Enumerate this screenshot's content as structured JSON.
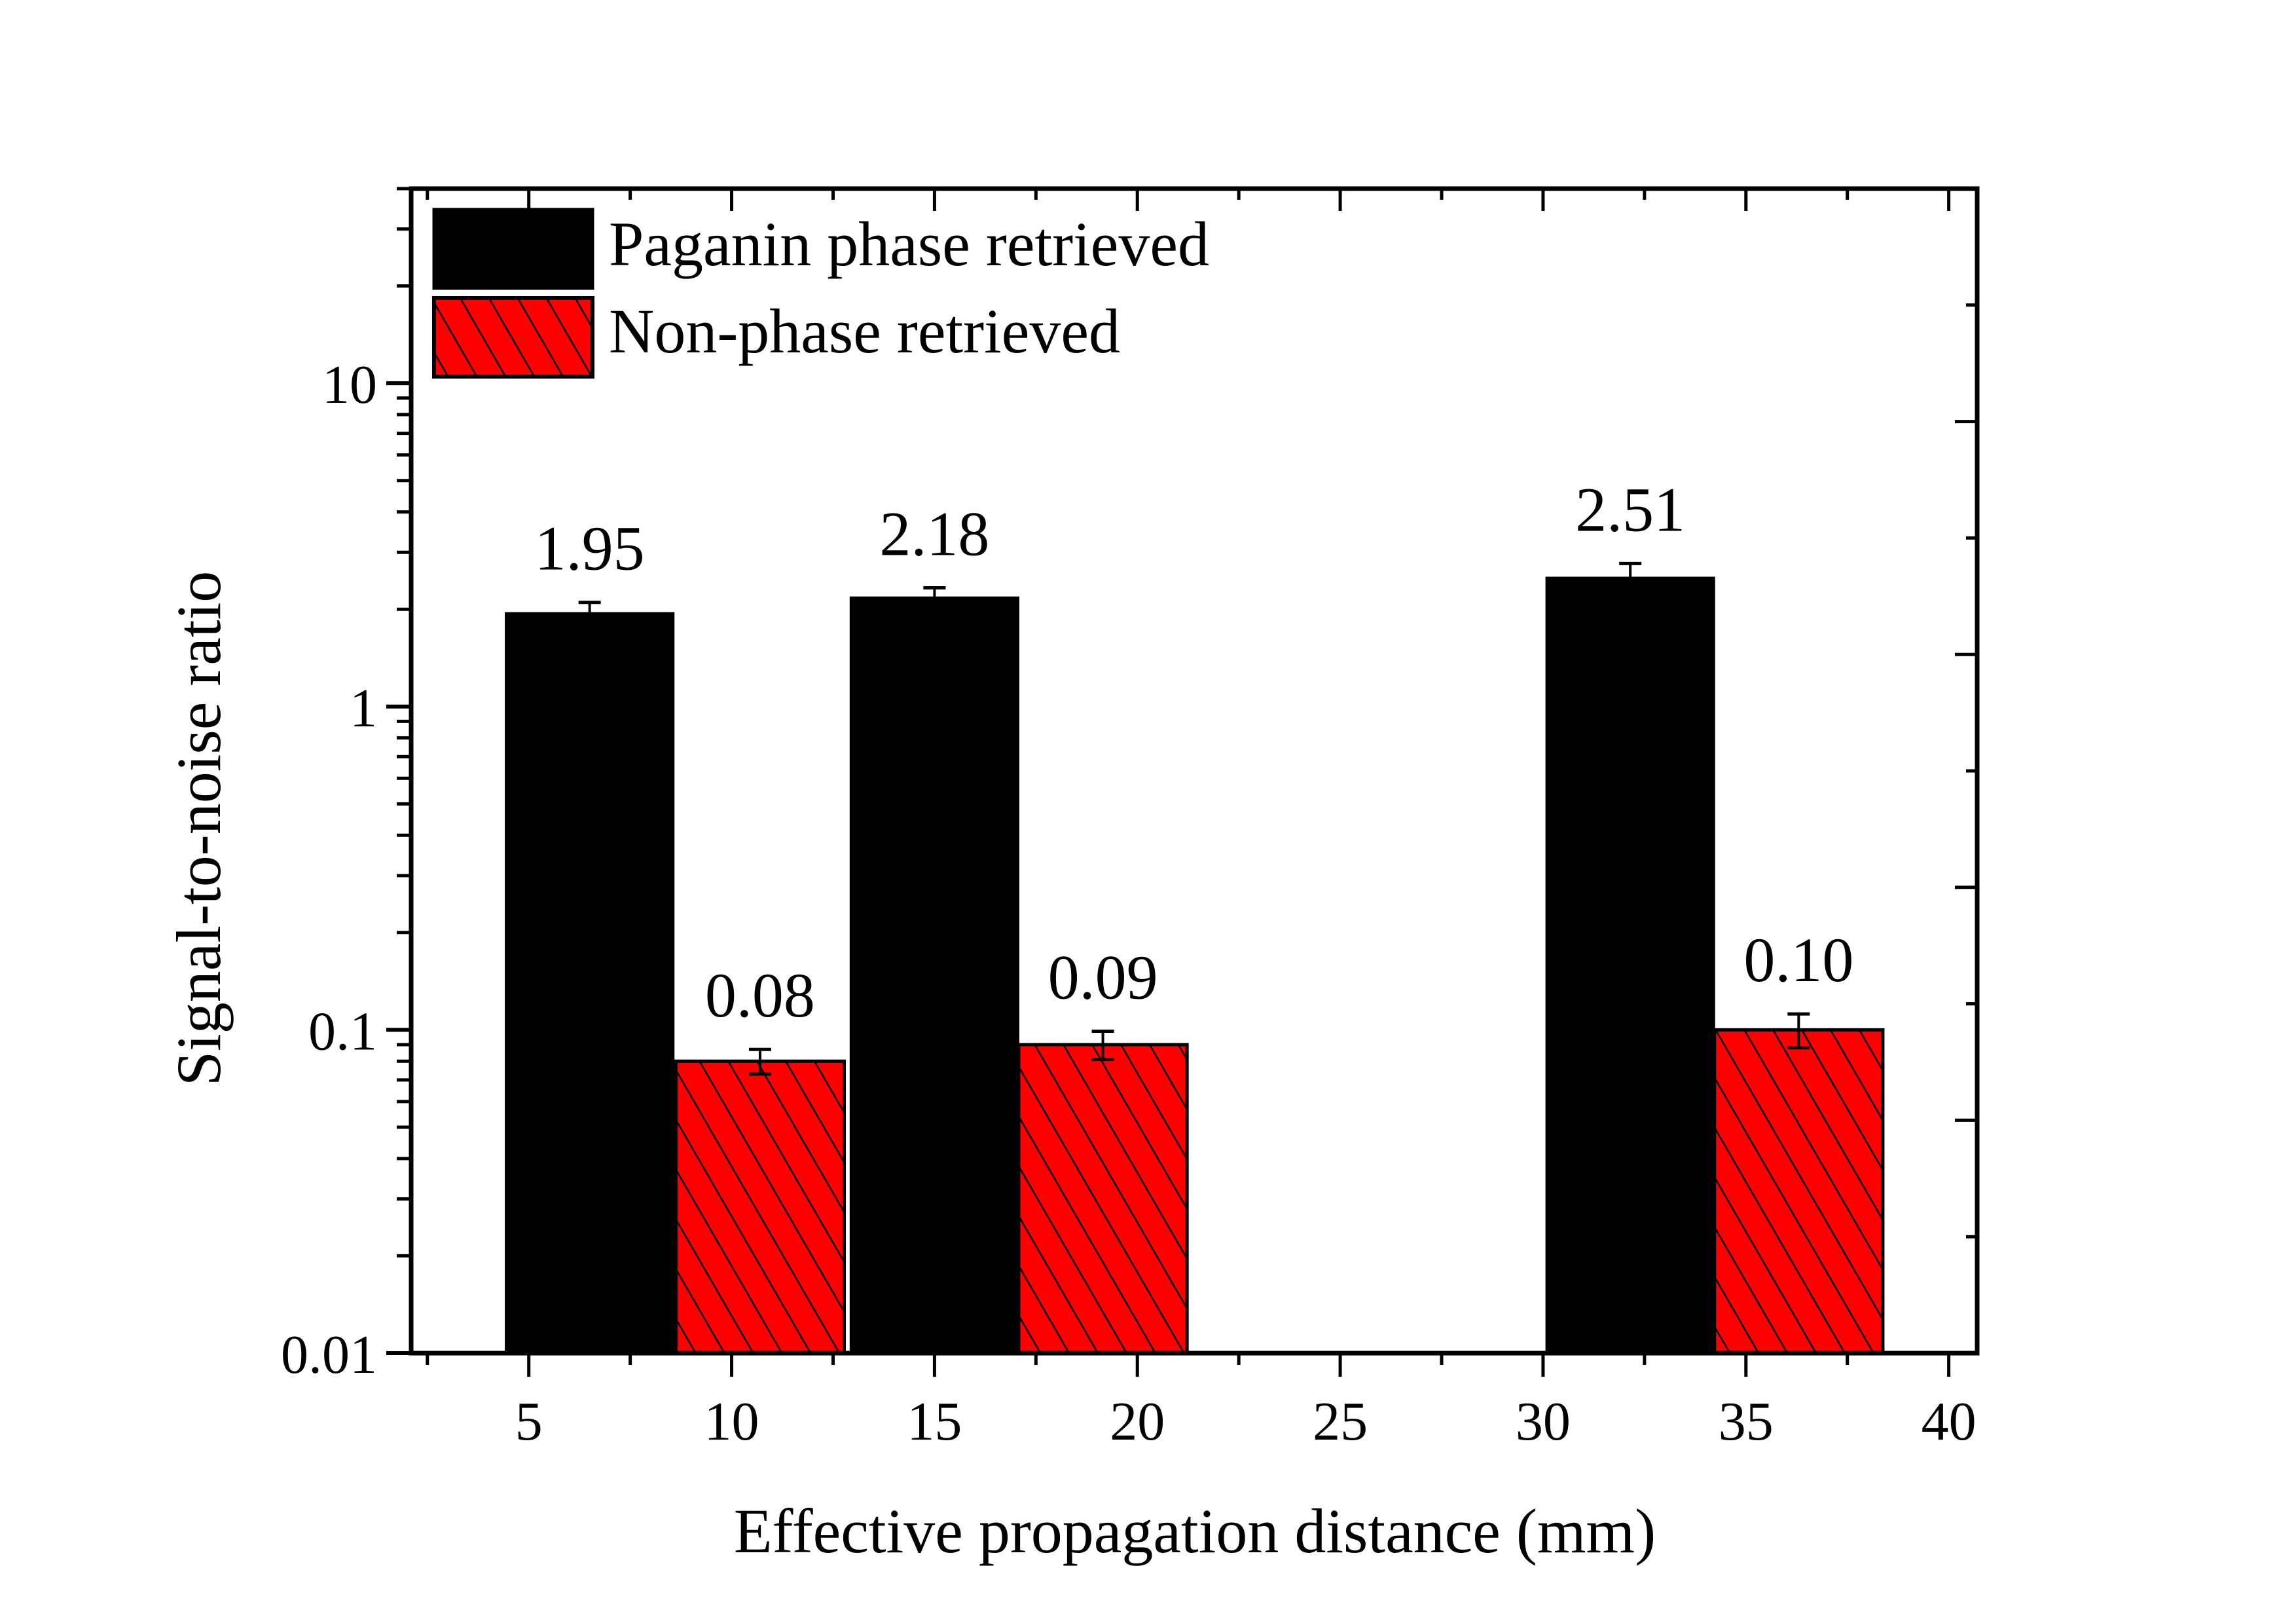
{
  "chart_data": {
    "type": "bar",
    "title": "",
    "xlabel": "Effective propagation distance (mm)",
    "ylabel": "Signal-to-noise ratio",
    "yscale": "log",
    "xlim": [
      2.1,
      40.7
    ],
    "ylim": [
      0.01,
      40
    ],
    "xticks": [
      5,
      10,
      15,
      20,
      25,
      30,
      35,
      40
    ],
    "xtick_labels": [
      "5",
      "10",
      "15",
      "20",
      "25",
      "30",
      "35",
      "40"
    ],
    "yticks": [
      0.01,
      0.1,
      1,
      10
    ],
    "ytick_labels": [
      "0.01",
      "0.1",
      "1",
      "10"
    ],
    "legend_position": "top-left",
    "grid": false,
    "series": [
      {
        "name": "Paganin phase retrieved",
        "color": "#000000",
        "pattern": "solid",
        "x": [
          6.5,
          15.0,
          32.15
        ],
        "values": [
          1.95,
          2.18,
          2.51
        ],
        "errors": [
          0.15,
          0.15,
          0.26
        ],
        "labels": [
          "1.95",
          "2.18",
          "2.51"
        ]
      },
      {
        "name": "Non-phase retrieved",
        "color": "#ff0000",
        "pattern": "hatched",
        "x": [
          10.7,
          19.15,
          36.3
        ],
        "values": [
          0.08,
          0.09,
          0.1
        ],
        "errors": [
          0.007,
          0.009,
          0.012
        ],
        "labels": [
          "0.08",
          "0.09",
          "0.10"
        ]
      }
    ],
    "bar_width": 4.15
  }
}
